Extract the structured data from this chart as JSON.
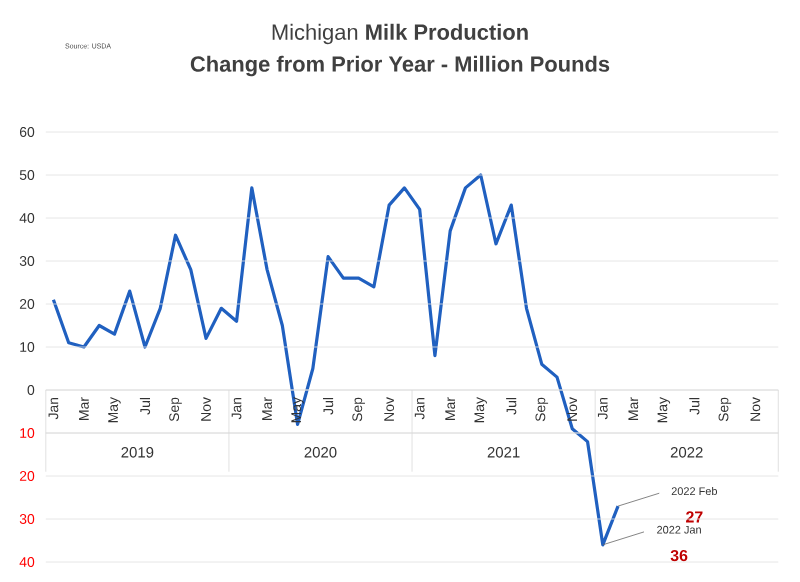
{
  "chart_data": {
    "type": "line",
    "title": "Michigan **Milk Production**",
    "subtitle": "Change from Prior Year - Million Pounds",
    "annotations": [
      "Source: USDA",
      "2019",
      "2020",
      "2021",
      "2022",
      "2022 Jan",
      "36",
      "2022 Feb",
      "27"
    ],
    "categories": [
      "Jan",
      null,
      "Mar",
      null,
      "May",
      null,
      "Jul",
      null,
      "Sep",
      null,
      "Nov",
      null,
      "Jan",
      null,
      "Mar",
      null,
      "May",
      null,
      "Jul",
      null,
      "Sep",
      null,
      "Nov",
      null,
      "Jan",
      null,
      "Mar",
      null,
      "May",
      null,
      "Jul",
      null,
      "Sep",
      null,
      "Nov",
      null,
      "Jan",
      null,
      "Mar",
      null,
      "May",
      null,
      "Jul",
      null,
      "Sep",
      null,
      "Nov",
      null
    ],
    "series": [
      {
        "color": "#2060c0",
        "values": [
          21,
          11,
          10,
          15,
          13,
          23,
          10,
          19,
          36,
          28,
          12,
          19,
          16,
          47,
          28,
          15,
          -8,
          5,
          31,
          26,
          26,
          24,
          43,
          47,
          42,
          8,
          37,
          47,
          50,
          34,
          43,
          19,
          6,
          3,
          -9,
          -12,
          -36,
          -27,
          null,
          null,
          null,
          null,
          null,
          null,
          null,
          null,
          null,
          null
        ]
      }
    ],
    "ylim": [
      -40,
      60
    ],
    "yticks": [
      {
        "value": -40,
        "label": "40"
      },
      {
        "value": -30,
        "label": "30"
      },
      {
        "value": -20,
        "label": "20"
      },
      {
        "value": -10,
        "label": "10"
      },
      0,
      10,
      20,
      30,
      40,
      50,
      60
    ],
    "grid": "y",
    "marker": "none",
    "line_style": "solid"
  }
}
